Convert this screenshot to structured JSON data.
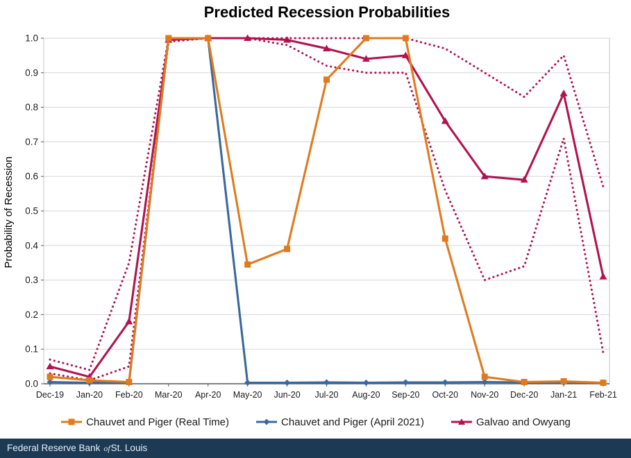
{
  "title": "Predicted Recession Probabilities",
  "footer": {
    "text_main": "Federal Reserve Bank",
    "text_of": "of",
    "text_suffix": "St. Louis",
    "bg_color": "#1C3A54"
  },
  "colors": {
    "orange": "#DF7B1E",
    "blue": "#38699F",
    "maroon": "#B11350",
    "grid": "#D6D6D6",
    "plot_border": "#C3C3C3",
    "axis": "#595959",
    "tick_text": "#1A1A1A"
  },
  "chart_data": {
    "type": "line",
    "title": "Predicted Recession Probabilities",
    "xlabel": "",
    "ylabel": "Probability of Recession",
    "ylim": [
      0.0,
      1.0
    ],
    "ytick_step": 0.1,
    "grid": "horizontal",
    "legend_position": "bottom",
    "categories": [
      "Dec-19",
      "Jan-20",
      "Feb-20",
      "Mar-20",
      "Apr-20",
      "May-20",
      "Jun-20",
      "Jul-20",
      "Aug-20",
      "Sep-20",
      "Oct-20",
      "Nov-20",
      "Dec-20",
      "Jan-21",
      "Feb-21"
    ],
    "series": [
      {
        "name": "Chauvet and Piger (Real Time)",
        "color": "#DF7B1E",
        "marker": "square",
        "style": "solid",
        "in_legend": true,
        "z": 4,
        "values": [
          0.02,
          0.01,
          0.005,
          1.0,
          1.0,
          0.345,
          0.39,
          0.88,
          1.0,
          1.0,
          0.42,
          0.02,
          0.005,
          0.007,
          0.003
        ]
      },
      {
        "name": "Chauvet and Piger (April 2021)",
        "color": "#38699F",
        "marker": "diamond",
        "style": "solid",
        "in_legend": true,
        "z": 3,
        "values": [
          0.005,
          0.003,
          0.003,
          1.0,
          1.0,
          0.003,
          0.003,
          0.004,
          0.003,
          0.004,
          0.004,
          0.005,
          0.004,
          0.003,
          0.003
        ]
      },
      {
        "name": "Galvao and Owyang",
        "color": "#B11350",
        "marker": "triangle",
        "style": "solid",
        "in_legend": true,
        "z": 2,
        "values": [
          0.05,
          0.02,
          0.18,
          0.995,
          1.0,
          1.0,
          0.995,
          0.97,
          0.94,
          0.95,
          0.76,
          0.6,
          0.59,
          0.84,
          0.31
        ]
      },
      {
        "name": "Galvao and Owyang upper band",
        "color": "#B11350",
        "marker": "none",
        "style": "dotted",
        "in_legend": false,
        "z": 1,
        "values": [
          0.07,
          0.04,
          0.35,
          1.0,
          1.0,
          1.0,
          1.0,
          1.0,
          1.0,
          1.0,
          0.97,
          0.9,
          0.83,
          0.95,
          0.57
        ]
      },
      {
        "name": "Galvao and Owyang lower band",
        "color": "#B11350",
        "marker": "none",
        "style": "dotted",
        "in_legend": false,
        "z": 1,
        "values": [
          0.03,
          0.01,
          0.05,
          0.99,
          1.0,
          1.0,
          0.98,
          0.92,
          0.9,
          0.9,
          0.56,
          0.3,
          0.34,
          0.71,
          0.09
        ]
      }
    ]
  }
}
